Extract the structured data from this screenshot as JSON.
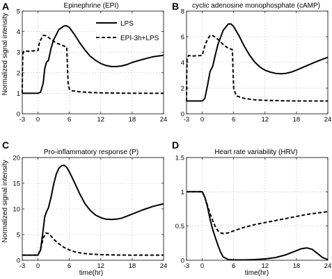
{
  "figure": {
    "legend": {
      "entries": [
        "LPS",
        "EPI-3h+LPS"
      ]
    },
    "ylabel_top": "Normalized signal intensity",
    "ylabel_bottom": "Normalized signal intensity",
    "xlabel_c": "time(hr)",
    "xlabel_d": "time(hr)"
  },
  "chart_data": [
    {
      "type": "line",
      "panel": "A",
      "title": "Epinephrine (EPI)",
      "xlim": [
        -3,
        24
      ],
      "ylim": [
        0,
        5
      ],
      "xticks": [
        -3,
        0,
        6,
        12,
        18,
        24
      ],
      "yticks": [
        0,
        1,
        2,
        3,
        4,
        5
      ],
      "grid": true,
      "legend_position": "top-right",
      "series": [
        {
          "name": "LPS",
          "style": "solid",
          "x": [
            -3,
            0,
            0.5,
            1,
            1.3,
            1.6,
            2,
            2.5,
            3,
            4,
            5,
            5.5,
            6,
            7,
            8,
            9,
            10,
            11,
            12,
            13,
            14,
            15,
            16,
            17,
            18,
            20,
            22,
            24
          ],
          "y": [
            1,
            1,
            1.05,
            1.5,
            2.2,
            2.5,
            2.6,
            3.2,
            3.6,
            4.1,
            4.28,
            4.28,
            4.2,
            3.85,
            3.45,
            3.1,
            2.8,
            2.6,
            2.45,
            2.35,
            2.3,
            2.3,
            2.33,
            2.4,
            2.5,
            2.65,
            2.78,
            2.85
          ]
        },
        {
          "name": "EPI-3h+LPS",
          "style": "dashed",
          "x": [
            -3,
            -2.97,
            -2.9,
            -2.7,
            -2.3,
            -1.5,
            0,
            0.3,
            1,
            1.6,
            2.5,
            3.5,
            4.5,
            5.5,
            5.75,
            6,
            6.5,
            8,
            10,
            12,
            15,
            18,
            21,
            24
          ],
          "y": [
            1,
            2.0,
            2.9,
            3.05,
            3.05,
            3.05,
            3.08,
            3.5,
            3.82,
            3.8,
            3.62,
            3.45,
            3.35,
            3.25,
            1.5,
            1.2,
            1.12,
            1.07,
            1.04,
            1.02,
            1.01,
            1.0,
            1.0,
            1.0
          ]
        }
      ]
    },
    {
      "type": "line",
      "panel": "B",
      "title": "cyclic adenosine monophosphate (cAMP)",
      "xlim": [
        -3,
        24
      ],
      "ylim": [
        0,
        8
      ],
      "xticks": [
        -3,
        0,
        6,
        12,
        18,
        24
      ],
      "yticks": [
        0,
        2,
        4,
        6,
        8
      ],
      "grid": true,
      "series": [
        {
          "name": "LPS",
          "style": "solid",
          "x": [
            -3,
            0,
            0.5,
            1,
            1.5,
            2,
            2.5,
            3,
            4,
            5,
            5.5,
            6,
            7,
            8,
            9,
            10,
            11,
            12,
            13,
            14,
            15,
            16,
            17,
            18,
            20,
            22,
            24
          ],
          "y": [
            1,
            1,
            1.2,
            2.2,
            3.3,
            3.7,
            4.6,
            5.4,
            6.5,
            7.0,
            7.0,
            6.8,
            6.1,
            5.3,
            4.6,
            4.05,
            3.65,
            3.4,
            3.25,
            3.15,
            3.12,
            3.15,
            3.25,
            3.4,
            3.75,
            4.1,
            4.4
          ]
        },
        {
          "name": "EPI-3h+LPS",
          "style": "dashed",
          "x": [
            -3,
            -2.97,
            -2.9,
            -2.6,
            -2,
            0,
            0.5,
            1,
            1.5,
            2,
            3,
            4,
            5,
            5.75,
            6,
            6.5,
            8,
            10,
            12,
            15,
            18,
            21,
            24
          ],
          "y": [
            1,
            2.8,
            4.3,
            4.55,
            4.5,
            4.55,
            5.3,
            5.8,
            6.1,
            6.1,
            5.8,
            5.4,
            5.1,
            5.0,
            2.0,
            1.4,
            1.2,
            1.1,
            1.05,
            1.02,
            1.0,
            1.0,
            1.0
          ]
        }
      ]
    },
    {
      "type": "line",
      "panel": "C",
      "title": "Pro-inflammatory response (P)",
      "xlim": [
        -3,
        24
      ],
      "ylim": [
        0,
        20
      ],
      "xticks": [
        -3,
        0,
        6,
        12,
        18,
        24
      ],
      "yticks": [
        0,
        5,
        10,
        15,
        20
      ],
      "grid": true,
      "series": [
        {
          "name": "LPS",
          "style": "solid",
          "x": [
            -3,
            0,
            0.5,
            1,
            1.3,
            1.7,
            2,
            2.5,
            3,
            3.5,
            4,
            4.5,
            5,
            5.5,
            6,
            7,
            8,
            9,
            10,
            11,
            12,
            13,
            14,
            15,
            16,
            17,
            18,
            20,
            22,
            24
          ],
          "y": [
            1,
            1,
            2,
            6,
            8.5,
            9.6,
            10.2,
            12.3,
            14.8,
            16.8,
            17.9,
            18.4,
            18.5,
            18.1,
            17.2,
            15.1,
            12.9,
            11.0,
            9.7,
            8.8,
            8.3,
            8.0,
            7.95,
            8.0,
            8.2,
            8.6,
            9.0,
            9.8,
            10.5,
            11.0
          ]
        },
        {
          "name": "EPI-3h+LPS",
          "style": "dashed",
          "x": [
            -3,
            0,
            0.5,
            1,
            1.5,
            2,
            2.5,
            3,
            4,
            5,
            6,
            7,
            8,
            9,
            10,
            12,
            15,
            18,
            21,
            24
          ],
          "y": [
            1,
            1,
            2.2,
            4.3,
            5.3,
            5.2,
            4.7,
            4.1,
            3.2,
            2.5,
            2.0,
            1.65,
            1.45,
            1.3,
            1.2,
            1.1,
            1.02,
            1.0,
            1.0,
            1.0
          ]
        }
      ]
    },
    {
      "type": "line",
      "panel": "D",
      "title": "Heart rate variability (HRV)",
      "xlim": [
        -3,
        24
      ],
      "ylim": [
        0,
        1.5
      ],
      "xticks": [
        -3,
        0,
        6,
        12,
        18,
        24
      ],
      "yticks": [
        0,
        0.5,
        1,
        1.5
      ],
      "grid": true,
      "series": [
        {
          "name": "LPS",
          "style": "solid",
          "x": [
            -3,
            0,
            0.5,
            1,
            1.5,
            2,
            2.5,
            3,
            3.5,
            4,
            5,
            6,
            8,
            10,
            12,
            14,
            16,
            17,
            18,
            19,
            20,
            21,
            22,
            23,
            24
          ],
          "y": [
            1,
            1,
            0.92,
            0.78,
            0.6,
            0.45,
            0.33,
            0.22,
            0.12,
            0.05,
            0.01,
            0.005,
            0.005,
            0.01,
            0.02,
            0.04,
            0.08,
            0.11,
            0.14,
            0.17,
            0.18,
            0.16,
            0.1,
            0.04,
            0.01
          ]
        },
        {
          "name": "EPI-3h+LPS",
          "style": "dashed",
          "x": [
            -3,
            0,
            0.5,
            1,
            1.5,
            2,
            2.5,
            3,
            3.5,
            4,
            5,
            6,
            8,
            10,
            12,
            14,
            16,
            18,
            20,
            22,
            24
          ],
          "y": [
            1,
            1,
            0.92,
            0.8,
            0.68,
            0.58,
            0.49,
            0.43,
            0.4,
            0.39,
            0.4,
            0.43,
            0.48,
            0.52,
            0.55,
            0.58,
            0.61,
            0.64,
            0.67,
            0.69,
            0.71
          ]
        }
      ]
    }
  ]
}
